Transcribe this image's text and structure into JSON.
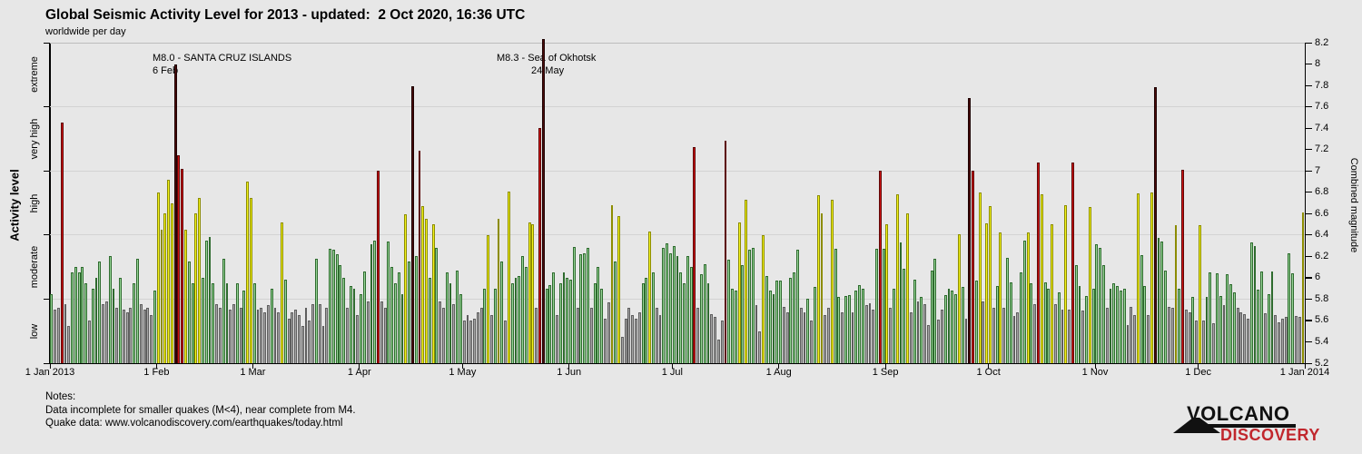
{
  "chart_data": {
    "type": "bar",
    "title": "Global Seismic Activity Level for 2013 - updated:  2 Oct 2020, 16:36 UTC",
    "subtitle": "worldwide per day",
    "ylabel_left": "Activity level",
    "ylabel_right": "Combined magnitude",
    "ylim": [
      5.2,
      8.2
    ],
    "grid_on": true,
    "grid_boundaries": [
      5.8,
      6.4,
      7.0,
      7.6
    ],
    "left_tick_mags": [
      5.2,
      5.8,
      6.4,
      7.0,
      7.6,
      8.2
    ],
    "right_tick_labels": [
      "8.2",
      "8",
      "7.8",
      "7.6",
      "7.4",
      "7.2",
      "7",
      "6.8",
      "6.6",
      "6.4",
      "6.2",
      "6",
      "5.8",
      "5.6",
      "5.4",
      "5.2"
    ],
    "month_ticks": [
      {
        "label": "1 Jan 2013",
        "day": 0
      },
      {
        "label": "1 Feb",
        "day": 31
      },
      {
        "label": "1 Mar",
        "day": 59
      },
      {
        "label": "1 Apr",
        "day": 90
      },
      {
        "label": "1 May",
        "day": 120
      },
      {
        "label": "1 Jun",
        "day": 151
      },
      {
        "label": "1 Jul",
        "day": 181
      },
      {
        "label": "1 Aug",
        "day": 212
      },
      {
        "label": "1 Sep",
        "day": 243
      },
      {
        "label": "1 Oct",
        "day": 273
      },
      {
        "label": "1 Nov",
        "day": 304
      },
      {
        "label": "1 Dec",
        "day": 334
      },
      {
        "label": "1 Jan 2014",
        "day": 365
      }
    ],
    "activity_levels": [
      {
        "name": "low",
        "min": 5.2,
        "max": 5.8,
        "fill": "#a6a6a6",
        "edge": "#5e5e5e",
        "label_mag": 5.5
      },
      {
        "name": "moderate",
        "min": 5.8,
        "max": 6.4,
        "fill": "#97d497",
        "edge": "#2e6b2e",
        "label_mag": 6.1
      },
      {
        "name": "high",
        "min": 6.4,
        "max": 7.0,
        "fill": "#f4f41c",
        "edge": "#8c8c00",
        "label_mag": 6.7
      },
      {
        "name": "very high",
        "min": 7.0,
        "max": 7.6,
        "fill": "#d31414",
        "edge": "#5c0707",
        "label_mag": 7.3
      },
      {
        "name": "extreme",
        "min": 7.6,
        "max": 8.4,
        "fill": "#4d0b0b",
        "edge": "#1c0202",
        "label_mag": 7.9
      }
    ],
    "annotations": [
      {
        "text": "M8.0 - SANTA CRUZ ISLANDS",
        "date_label": "6 Feb"
      },
      {
        "text": "M8.3 - Sea of Okhotsk",
        "date_label": "24 May"
      }
    ],
    "values": [
      5.85,
      5.7,
      5.72,
      7.45,
      5.75,
      5.55,
      6.05,
      6.1,
      6.05,
      6.1,
      5.95,
      5.6,
      5.9,
      6.0,
      6.15,
      5.75,
      5.78,
      6.2,
      5.9,
      5.72,
      6.0,
      5.7,
      5.68,
      5.72,
      5.95,
      6.18,
      5.75,
      5.7,
      5.72,
      5.65,
      5.88,
      6.8,
      6.45,
      6.6,
      6.92,
      6.7,
      8.0,
      7.15,
      7.02,
      6.45,
      6.15,
      5.95,
      6.6,
      6.75,
      6.0,
      6.35,
      6.38,
      5.95,
      5.75,
      5.72,
      6.18,
      5.95,
      5.7,
      5.75,
      5.95,
      5.72,
      5.88,
      6.9,
      6.75,
      5.95,
      5.7,
      5.72,
      5.68,
      5.74,
      5.9,
      5.72,
      5.68,
      6.52,
      5.98,
      5.62,
      5.68,
      5.7,
      5.65,
      5.55,
      5.72,
      5.6,
      5.75,
      6.18,
      5.75,
      5.55,
      5.72,
      6.27,
      6.26,
      6.22,
      6.12,
      6.0,
      5.72,
      5.92,
      5.9,
      5.65,
      5.85,
      6.06,
      5.78,
      6.31,
      6.35,
      7.0,
      5.78,
      5.72,
      6.34,
      6.1,
      5.95,
      6.05,
      5.85,
      6.59,
      6.15,
      7.79,
      6.2,
      7.19,
      6.67,
      6.55,
      6.0,
      6.5,
      6.28,
      5.78,
      5.72,
      6.05,
      5.95,
      5.75,
      6.07,
      5.85,
      5.6,
      5.65,
      5.6,
      5.62,
      5.68,
      5.72,
      5.9,
      6.4,
      5.65,
      5.9,
      6.55,
      6.15,
      5.6,
      6.81,
      5.95,
      6.0,
      6.02,
      6.2,
      6.1,
      6.52,
      6.5,
      5.72,
      7.4,
      8.3,
      5.9,
      5.93,
      6.05,
      5.65,
      5.95,
      6.05,
      6.0,
      5.98,
      6.29,
      5.72,
      6.22,
      6.23,
      6.28,
      5.72,
      5.95,
      6.1,
      5.9,
      5.62,
      5.77,
      6.68,
      6.15,
      6.58,
      5.45,
      5.62,
      5.72,
      5.65,
      5.62,
      5.68,
      5.95,
      6.0,
      6.43,
      6.05,
      5.72,
      5.65,
      6.28,
      6.32,
      6.23,
      6.3,
      6.2,
      6.05,
      5.95,
      6.2,
      6.1,
      7.22,
      5.72,
      6.03,
      6.13,
      5.95,
      5.66,
      5.63,
      5.42,
      5.6,
      7.28,
      6.17,
      5.9,
      5.88,
      6.52,
      6.12,
      6.73,
      6.26,
      6.28,
      5.74,
      5.5,
      6.4,
      6.02,
      5.88,
      5.85,
      5.97,
      5.97,
      5.73,
      5.68,
      6.0,
      6.05,
      6.26,
      5.72,
      5.68,
      5.8,
      5.6,
      5.91,
      6.77,
      6.6,
      5.65,
      5.72,
      6.73,
      6.27,
      5.82,
      5.68,
      5.83,
      5.84,
      5.68,
      5.88,
      5.93,
      5.9,
      5.74,
      5.76,
      5.7,
      6.27,
      7.0,
      6.27,
      6.5,
      5.72,
      5.9,
      6.78,
      6.33,
      6.08,
      6.6,
      5.68,
      5.98,
      5.78,
      5.82,
      5.75,
      5.56,
      6.07,
      6.18,
      5.61,
      5.7,
      5.84,
      5.9,
      5.88,
      5.85,
      6.41,
      5.91,
      5.62,
      7.68,
      7.0,
      5.97,
      6.8,
      5.78,
      6.51,
      6.67,
      5.72,
      5.92,
      6.42,
      5.72,
      6.19,
      5.96,
      5.64,
      5.68,
      6.05,
      6.35,
      6.42,
      5.95,
      5.75,
      7.08,
      6.78,
      5.96,
      5.9,
      6.5,
      5.75,
      5.86,
      5.7,
      6.68,
      5.7,
      7.08,
      6.12,
      5.92,
      5.69,
      5.83,
      6.66,
      5.9,
      6.31,
      6.28,
      6.12,
      5.72,
      5.9,
      5.95,
      5.92,
      5.88,
      5.9,
      5.56,
      5.73,
      5.65,
      6.79,
      6.21,
      5.92,
      5.65,
      6.8,
      7.78,
      6.37,
      6.34,
      6.07,
      5.73,
      5.72,
      6.49,
      5.9,
      7.01,
      5.7,
      5.68,
      5.82,
      5.6,
      6.49,
      5.6,
      5.82,
      6.05,
      5.57,
      6.04,
      5.83,
      5.74,
      6.03,
      5.94,
      5.86,
      5.72,
      5.68,
      5.66,
      5.62,
      6.33,
      6.3,
      5.89,
      6.06,
      5.67,
      5.85,
      6.06,
      5.65,
      5.58,
      5.62,
      5.63,
      6.23,
      6.04,
      5.64,
      5.63,
      6.61
    ]
  },
  "notes": {
    "line1": "Notes:",
    "line2": "Data incomplete for smaller quakes (M<4), near complete from M4.",
    "line3": "Quake data: www.volcanodiscovery.com/earthquakes/today.html"
  },
  "logo": {
    "line1": "VOLCANO",
    "line2": "DISCOVERY"
  }
}
